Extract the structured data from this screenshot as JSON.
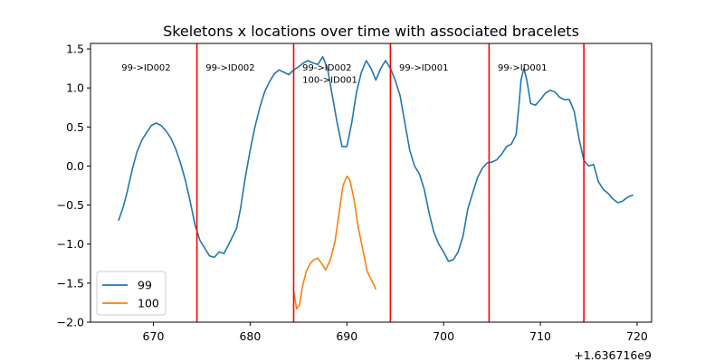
{
  "chart_data": {
    "type": "line",
    "title": "Skeletons x locations over time with associated bracelets",
    "xlabel": "",
    "ylabel": "",
    "x_offset_label": "+1.636716e9",
    "xlim": [
      663.5,
      721.5
    ],
    "ylim": [
      -2.0,
      1.57
    ],
    "x_ticks": [
      670,
      680,
      690,
      700,
      710,
      720
    ],
    "y_ticks": [
      -2.0,
      -1.5,
      -1.0,
      -0.5,
      0.0,
      0.5,
      1.0,
      1.5
    ],
    "y_tick_labels": [
      "−2.0",
      "−1.5",
      "−1.0",
      "−0.5",
      "0.0",
      "0.5",
      "1.0",
      "1.5"
    ],
    "grid": false,
    "legend_position": "lower-left",
    "series": [
      {
        "name": "99",
        "color": "#1f77b4",
        "points": [
          [
            666.4,
            -0.7
          ],
          [
            666.9,
            -0.52
          ],
          [
            667.3,
            -0.33
          ],
          [
            667.8,
            -0.05
          ],
          [
            668.3,
            0.18
          ],
          [
            668.8,
            0.33
          ],
          [
            669.3,
            0.43
          ],
          [
            669.8,
            0.52
          ],
          [
            670.3,
            0.55
          ],
          [
            670.8,
            0.52
          ],
          [
            671.3,
            0.45
          ],
          [
            671.8,
            0.36
          ],
          [
            672.3,
            0.22
          ],
          [
            672.8,
            0.04
          ],
          [
            673.3,
            -0.18
          ],
          [
            673.8,
            -0.45
          ],
          [
            674.3,
            -0.75
          ],
          [
            674.8,
            -0.95
          ],
          [
            675.3,
            -1.05
          ],
          [
            675.8,
            -1.15
          ],
          [
            676.3,
            -1.17
          ],
          [
            676.8,
            -1.1
          ],
          [
            677.3,
            -1.12
          ],
          [
            677.8,
            -1.0
          ],
          [
            678.2,
            -0.9
          ],
          [
            678.6,
            -0.8
          ],
          [
            679.0,
            -0.55
          ],
          [
            679.5,
            -0.15
          ],
          [
            680.0,
            0.2
          ],
          [
            680.5,
            0.5
          ],
          [
            681.0,
            0.75
          ],
          [
            681.5,
            0.95
          ],
          [
            682.0,
            1.08
          ],
          [
            682.5,
            1.18
          ],
          [
            683.0,
            1.23
          ],
          [
            683.5,
            1.2
          ],
          [
            684.0,
            1.17
          ],
          [
            684.5,
            1.23
          ],
          [
            685.0,
            1.27
          ],
          [
            685.5,
            1.32
          ],
          [
            686.0,
            1.35
          ],
          [
            686.5,
            1.32
          ],
          [
            687.0,
            1.3
          ],
          [
            687.5,
            1.4
          ],
          [
            688.0,
            1.25
          ],
          [
            688.5,
            0.9
          ],
          [
            689.0,
            0.55
          ],
          [
            689.5,
            0.25
          ],
          [
            690.0,
            0.25
          ],
          [
            690.5,
            0.55
          ],
          [
            691.0,
            0.95
          ],
          [
            691.5,
            1.2
          ],
          [
            692.0,
            1.35
          ],
          [
            692.5,
            1.25
          ],
          [
            693.0,
            1.1
          ],
          [
            693.5,
            1.25
          ],
          [
            694.0,
            1.35
          ],
          [
            694.5,
            1.25
          ],
          [
            695.0,
            1.1
          ],
          [
            695.5,
            0.9
          ],
          [
            696.0,
            0.55
          ],
          [
            696.5,
            0.2
          ],
          [
            697.0,
            0.0
          ],
          [
            697.5,
            -0.1
          ],
          [
            698.0,
            -0.3
          ],
          [
            698.5,
            -0.6
          ],
          [
            699.0,
            -0.85
          ],
          [
            699.5,
            -1.0
          ],
          [
            700.0,
            -1.1
          ],
          [
            700.5,
            -1.22
          ],
          [
            701.0,
            -1.2
          ],
          [
            701.5,
            -1.1
          ],
          [
            702.0,
            -0.9
          ],
          [
            702.5,
            -0.55
          ],
          [
            703.0,
            -0.35
          ],
          [
            703.5,
            -0.15
          ],
          [
            704.0,
            -0.03
          ],
          [
            704.5,
            0.04
          ],
          [
            705.0,
            0.05
          ],
          [
            705.5,
            0.08
          ],
          [
            706.0,
            0.15
          ],
          [
            706.5,
            0.25
          ],
          [
            707.0,
            0.28
          ],
          [
            707.5,
            0.4
          ],
          [
            707.8,
            0.8
          ],
          [
            708.0,
            1.1
          ],
          [
            708.3,
            1.25
          ],
          [
            708.6,
            1.1
          ],
          [
            709.0,
            0.8
          ],
          [
            709.5,
            0.78
          ],
          [
            710.0,
            0.85
          ],
          [
            710.5,
            0.93
          ],
          [
            711.0,
            0.97
          ],
          [
            711.5,
            0.95
          ],
          [
            712.0,
            0.88
          ],
          [
            712.5,
            0.85
          ],
          [
            713.0,
            0.85
          ],
          [
            713.5,
            0.7
          ],
          [
            714.0,
            0.35
          ],
          [
            714.5,
            0.07
          ],
          [
            715.0,
            0.0
          ],
          [
            715.5,
            0.02
          ],
          [
            716.0,
            -0.2
          ],
          [
            716.5,
            -0.3
          ],
          [
            717.0,
            -0.35
          ],
          [
            717.5,
            -0.42
          ],
          [
            718.0,
            -0.47
          ],
          [
            718.5,
            -0.45
          ],
          [
            719.0,
            -0.4
          ],
          [
            719.6,
            -0.37
          ]
        ]
      },
      {
        "name": "100",
        "color": "#ff7f0e",
        "points": [
          [
            684.5,
            -1.6
          ],
          [
            684.8,
            -1.83
          ],
          [
            685.1,
            -1.78
          ],
          [
            685.4,
            -1.55
          ],
          [
            685.8,
            -1.35
          ],
          [
            686.2,
            -1.25
          ],
          [
            686.6,
            -1.2
          ],
          [
            687.0,
            -1.18
          ],
          [
            687.4,
            -1.25
          ],
          [
            687.8,
            -1.33
          ],
          [
            688.3,
            -1.2
          ],
          [
            688.8,
            -0.95
          ],
          [
            689.2,
            -0.6
          ],
          [
            689.6,
            -0.25
          ],
          [
            690.0,
            -0.13
          ],
          [
            690.3,
            -0.18
          ],
          [
            690.7,
            -0.4
          ],
          [
            691.2,
            -0.8
          ],
          [
            691.7,
            -1.1
          ],
          [
            692.1,
            -1.35
          ],
          [
            692.5,
            -1.45
          ],
          [
            692.8,
            -1.52
          ],
          [
            693.0,
            -1.58
          ]
        ]
      }
    ],
    "vlines": {
      "color": "#ff0000",
      "x": [
        674.5,
        684.5,
        694.5,
        704.7,
        714.5
      ]
    },
    "annotations": [
      {
        "text": "99->ID002",
        "x": 666.7,
        "y": 1.27
      },
      {
        "text": "99->ID002",
        "x": 675.4,
        "y": 1.27
      },
      {
        "text": "99->ID002",
        "x": 685.4,
        "y": 1.27
      },
      {
        "text": "100->ID001",
        "x": 685.4,
        "y": 1.11
      },
      {
        "text": "99->ID001",
        "x": 695.4,
        "y": 1.27
      },
      {
        "text": "99->ID001",
        "x": 705.6,
        "y": 1.27
      }
    ]
  }
}
